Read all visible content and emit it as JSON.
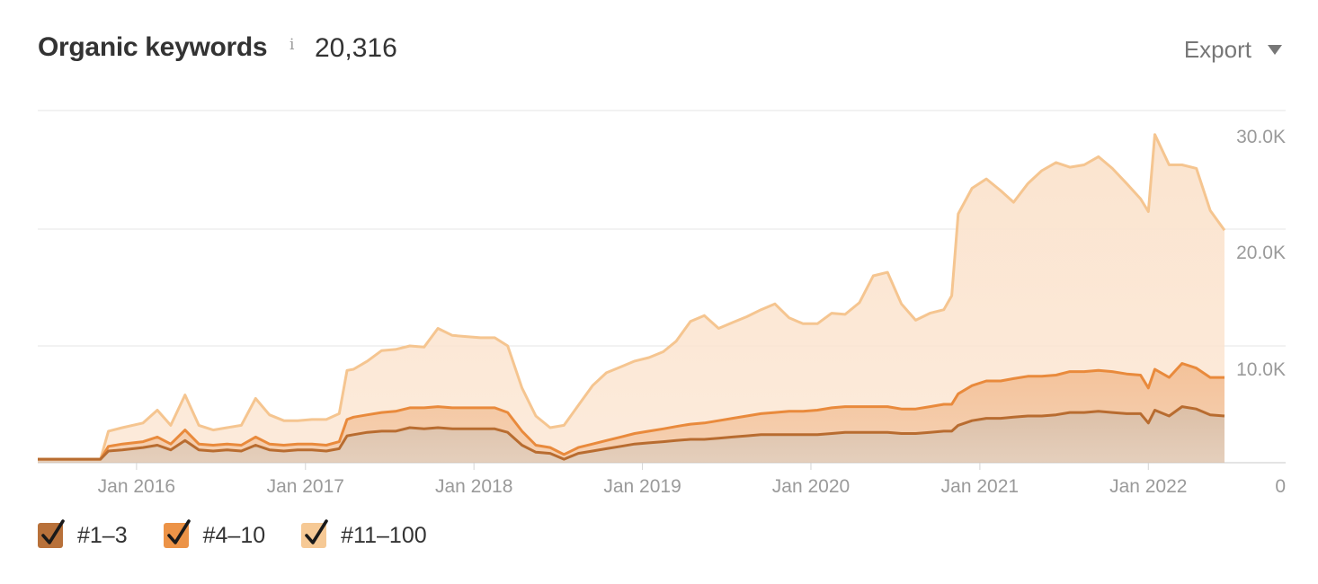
{
  "header": {
    "title": "Organic keywords",
    "info_glyph": "i",
    "total": "20,316",
    "export_label": "Export",
    "export_icon": "caret-down-icon"
  },
  "legend": [
    {
      "label": "#1–3",
      "color": "#b8713a",
      "checked": true
    },
    {
      "label": "#4–10",
      "color": "#ec9347",
      "checked": true
    },
    {
      "label": "#11–100",
      "color": "#f6c995",
      "checked": true
    }
  ],
  "colors": {
    "series_1_3_line": "#b86c30",
    "series_1_3_fill": "#dcbfa6",
    "series_4_10_line": "#e98a3c",
    "series_4_10_fill": "#f3c29a",
    "series_11_100_line": "#f5c590",
    "series_11_100_fill": "#fbe4cf",
    "grid": "#e6e6e6",
    "axis_text": "#9a9a9a"
  },
  "chart_data": {
    "type": "area",
    "stacked": true,
    "x_ticks": [
      "Jan 2016",
      "Jan 2017",
      "Jan 2018",
      "Jan 2019",
      "Jan 2020",
      "Jan 2021",
      "Jan 2022"
    ],
    "y_ticks": [
      "30.0K",
      "20.0K",
      "10.0K",
      "0"
    ],
    "y_tick_values": [
      30000,
      20000,
      10000,
      0
    ],
    "ylim": [
      0,
      30000
    ],
    "xlim": [
      "2015-06-01",
      "2022-06-15"
    ],
    "grid": true,
    "y_axis_position": "right",
    "x": [
      "2015-06-01",
      "2015-10-15",
      "2015-11-01",
      "2015-12-01",
      "2016-01-15",
      "2016-02-15",
      "2016-03-15",
      "2016-04-15",
      "2016-05-15",
      "2016-06-15",
      "2016-07-15",
      "2016-08-15",
      "2016-09-15",
      "2016-10-15",
      "2016-11-15",
      "2016-12-15",
      "2017-01-15",
      "2017-02-15",
      "2017-03-15",
      "2017-04-01",
      "2017-04-15",
      "2017-05-15",
      "2017-06-15",
      "2017-07-15",
      "2017-08-15",
      "2017-09-15",
      "2017-10-15",
      "2017-11-15",
      "2017-12-15",
      "2018-01-15",
      "2018-02-15",
      "2018-03-15",
      "2018-04-15",
      "2018-05-15",
      "2018-06-15",
      "2018-07-15",
      "2018-08-15",
      "2018-09-15",
      "2018-10-15",
      "2018-11-15",
      "2018-12-15",
      "2019-01-15",
      "2019-02-15",
      "2019-03-15",
      "2019-04-15",
      "2019-05-15",
      "2019-06-15",
      "2019-07-15",
      "2019-08-15",
      "2019-09-15",
      "2019-10-15",
      "2019-11-15",
      "2019-12-15",
      "2020-01-15",
      "2020-02-15",
      "2020-03-15",
      "2020-04-15",
      "2020-05-15",
      "2020-06-15",
      "2020-07-15",
      "2020-08-15",
      "2020-09-15",
      "2020-10-15",
      "2020-11-01",
      "2020-11-15",
      "2020-12-15",
      "2021-01-15",
      "2021-02-15",
      "2021-03-15",
      "2021-04-15",
      "2021-05-15",
      "2021-06-15",
      "2021-07-15",
      "2021-08-15",
      "2021-09-15",
      "2021-10-15",
      "2021-11-15",
      "2021-12-15",
      "2022-01-01",
      "2022-01-15",
      "2022-02-15",
      "2022-03-15",
      "2022-04-15",
      "2022-05-15",
      "2022-06-15"
    ],
    "series": [
      {
        "name": "#1–3",
        "values": [
          300,
          300,
          1000,
          1100,
          1300,
          1500,
          1100,
          1900,
          1100,
          1000,
          1100,
          1000,
          1500,
          1100,
          1000,
          1100,
          1100,
          1000,
          1200,
          2300,
          2400,
          2600,
          2700,
          2700,
          3000,
          2900,
          3000,
          2900,
          2900,
          2900,
          2900,
          2600,
          1500,
          900,
          800,
          300,
          800,
          1000,
          1200,
          1400,
          1600,
          1700,
          1800,
          1900,
          2000,
          2000,
          2100,
          2200,
          2300,
          2400,
          2400,
          2400,
          2400,
          2400,
          2500,
          2600,
          2600,
          2600,
          2600,
          2500,
          2500,
          2600,
          2700,
          2700,
          3200,
          3600,
          3800,
          3800,
          3900,
          4000,
          4000,
          4100,
          4300,
          4300,
          4400,
          4300,
          4200,
          4200,
          3400,
          4500,
          4000,
          4800,
          4600,
          4100,
          4000
        ]
      },
      {
        "name": "#4–10",
        "values": [
          0,
          0,
          400,
          500,
          500,
          700,
          500,
          900,
          500,
          500,
          500,
          500,
          700,
          500,
          500,
          500,
          500,
          500,
          600,
          1400,
          1500,
          1500,
          1600,
          1700,
          1700,
          1800,
          1800,
          1800,
          1800,
          1800,
          1800,
          1700,
          1200,
          600,
          500,
          400,
          500,
          600,
          700,
          800,
          900,
          1000,
          1100,
          1200,
          1300,
          1400,
          1500,
          1600,
          1700,
          1800,
          1900,
          2000,
          2000,
          2100,
          2200,
          2200,
          2200,
          2200,
          2200,
          2100,
          2100,
          2200,
          2300,
          2300,
          2700,
          3000,
          3200,
          3200,
          3300,
          3400,
          3400,
          3400,
          3500,
          3500,
          3500,
          3500,
          3400,
          3300,
          3000,
          3500,
          3300,
          3700,
          3500,
          3200,
          3300
        ]
      },
      {
        "name": "#11–100",
        "values": [
          0,
          0,
          1300,
          1400,
          1600,
          2300,
          1600,
          3000,
          1600,
          1300,
          1400,
          1700,
          3300,
          2500,
          2100,
          2000,
          2100,
          2200,
          2400,
          4200,
          4100,
          4600,
          5300,
          5300,
          5300,
          5200,
          6700,
          6200,
          6100,
          6000,
          6000,
          5700,
          3700,
          2500,
          1700,
          2500,
          3600,
          5000,
          5800,
          6000,
          6200,
          6300,
          6600,
          7300,
          8800,
          9200,
          7900,
          8200,
          8500,
          8900,
          9300,
          8000,
          7500,
          7400,
          8100,
          7900,
          8900,
          11200,
          11500,
          9000,
          7600,
          8000,
          8100,
          9300,
          15400,
          16900,
          17300,
          16300,
          15100,
          16500,
          17600,
          18200,
          17500,
          17700,
          18300,
          17400,
          16300,
          15100,
          15100,
          20100,
          18200,
          17000,
          17100,
          14300,
          12600
        ]
      }
    ]
  }
}
